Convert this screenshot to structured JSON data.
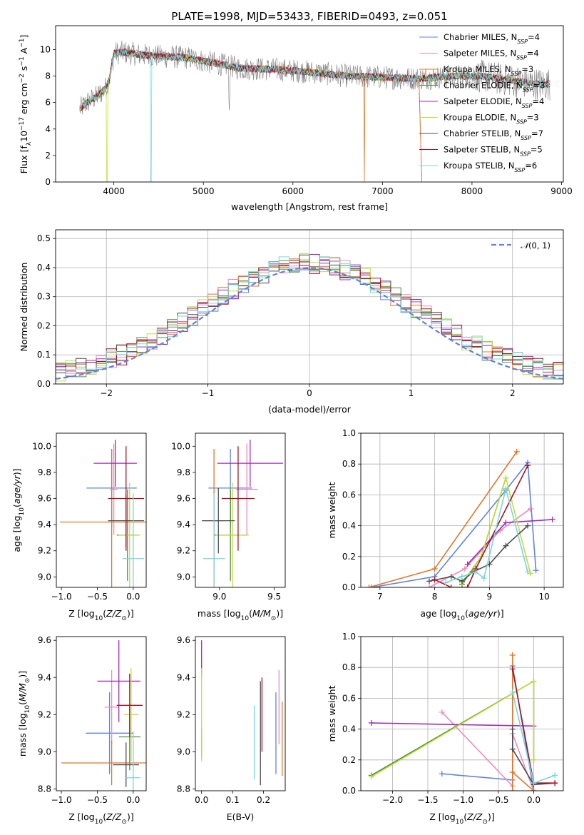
{
  "title": "PLATE=1998, MJD=53433, FIBERID=0493, z=0.051",
  "colors": {
    "chabrier_miles": "#5f84da",
    "salpeter_miles": "#e98bc3",
    "kroupa_miles": "#e37527",
    "chabrier_elodie": "#4b8f3a",
    "salpeter_elodie": "#a12cb7",
    "kroupa_elodie": "#c3dd3d",
    "chabrier_stelib": "#4d4d4d",
    "salpeter_stelib": "#a51222",
    "kroupa_stelib": "#78d6dc",
    "data": "#7f7f7f",
    "normal": "#5f84da",
    "grid": "#b0b0b0"
  },
  "chart_data": [
    {
      "type": "line",
      "xlabel": "wavelength [Angstrom, rest frame]",
      "ylabel": "Flux [f_λ 10^-17 erg cm^-2 s^-1 A^-1]",
      "xlim": [
        3350,
        9020
      ],
      "ylim": [
        0,
        11.8
      ],
      "xticks": [
        4000,
        5000,
        6000,
        7000,
        8000,
        9000
      ],
      "yticks": [
        0,
        2,
        4,
        6,
        8,
        10
      ],
      "grid": false,
      "legend": "top-right",
      "legend_entries": [
        {
          "base": "Chabrier MILES, N",
          "sub": "SSP",
          "tail": "=4"
        },
        {
          "base": "Salpeter MILES, N",
          "sub": "SSP",
          "tail": "=4"
        },
        {
          "base": "Kroupa MILES, N",
          "sub": "SSP",
          "tail": "=3"
        },
        {
          "base": "Chabrier ELODIE, N",
          "sub": "SSP",
          "tail": "=3"
        },
        {
          "base": "Salpeter ELODIE, N",
          "sub": "SSP",
          "tail": "=4"
        },
        {
          "base": "Kroupa ELODIE, N",
          "sub": "SSP",
          "tail": "=3"
        },
        {
          "base": "Chabrier STELIB, N",
          "sub": "SSP",
          "tail": "=7"
        },
        {
          "base": "Salpeter STELIB, N",
          "sub": "SSP",
          "tail": "=5"
        },
        {
          "base": "Kroupa STELIB, N",
          "sub": "SSP",
          "tail": "=6"
        }
      ],
      "continuum": {
        "x": [
          3620,
          3700,
          3800,
          3900,
          3950,
          4000,
          4100,
          4300,
          4500,
          4800,
          5100,
          5400,
          5800,
          6200,
          6600,
          7000,
          7400,
          7800,
          8100,
          8400,
          8700
        ],
        "y": [
          5.5,
          6.0,
          6.4,
          7.0,
          7.7,
          9.7,
          9.8,
          9.6,
          9.5,
          9.4,
          9.0,
          8.6,
          8.5,
          8.3,
          8.0,
          7.9,
          7.8,
          8.0,
          8.0,
          7.7,
          7.4
        ]
      },
      "notes": "model lines roughly follow the continuum; MILES models end near 7400 A"
    },
    {
      "type": "histogram",
      "xlabel": "(data-model)/error",
      "ylabel": "Normed distribution",
      "xlim": [
        -2.5,
        2.5
      ],
      "ylim": [
        0,
        0.53
      ],
      "xticks": [
        -2,
        -1,
        0,
        1,
        2
      ],
      "yticks": [
        0.0,
        0.1,
        0.2,
        0.3,
        0.4,
        0.5
      ],
      "grid": true,
      "legend": "top-right",
      "legend_label": "N(0,1)",
      "bin_width": 0.1,
      "reference_curve": "normal(0,1)"
    },
    {
      "type": "scatter",
      "panel": "age-vs-Z",
      "xlabel": "Z [log10(Z/Z_sun)]",
      "ylabel": "age [log10(age/yr)]",
      "xlim": [
        -1.07,
        0.18
      ],
      "ylim": [
        8.92,
        10.1
      ],
      "xticks": [
        -1.0,
        -0.5,
        0.0
      ],
      "yticks": [
        9.0,
        9.2,
        9.4,
        9.6,
        9.8,
        10.0
      ],
      "points": [
        {
          "m": "chabrier_miles",
          "x": -0.3,
          "y": 9.68,
          "xerr": 0.35,
          "yerr": 0.3
        },
        {
          "m": "salpeter_miles",
          "x": -0.27,
          "y": 9.67,
          "xerr": 0.05,
          "yerr": 0.35
        },
        {
          "m": "kroupa_miles",
          "x": -0.3,
          "y": 9.42,
          "xerr": 0.72,
          "yerr": 0.55
        },
        {
          "m": "chabrier_elodie",
          "x": -0.08,
          "y": 9.32,
          "xerr": 0.15,
          "yerr": 0.35
        },
        {
          "m": "salpeter_elodie",
          "x": -0.25,
          "y": 9.87,
          "xerr": 0.3,
          "yerr": 0.18
        },
        {
          "m": "kroupa_elodie",
          "x": -0.05,
          "y": 9.32,
          "xerr": 0.15,
          "yerr": 0.4
        },
        {
          "m": "chabrier_stelib",
          "x": -0.1,
          "y": 9.43,
          "xerr": 0.25,
          "yerr": 0.2
        },
        {
          "m": "salpeter_stelib",
          "x": -0.1,
          "y": 9.6,
          "xerr": 0.25,
          "yerr": 0.4
        },
        {
          "m": "kroupa_stelib",
          "x": 0.0,
          "y": 9.14,
          "xerr": 0.15,
          "yerr": 0.5
        }
      ]
    },
    {
      "type": "scatter",
      "panel": "age-vs-mass",
      "xlabel": "mass [log10(M/M_sun)]",
      "ylabel": "",
      "xlim": [
        8.78,
        9.6
      ],
      "ylim": [
        8.92,
        10.1
      ],
      "xticks": [
        9.0,
        9.5
      ],
      "yticks": [
        9.0,
        9.2,
        9.4,
        9.6,
        9.8,
        10.0
      ],
      "points": [
        {
          "m": "chabrier_miles",
          "x": 9.1,
          "y": 9.68,
          "xerr": 0.2,
          "yerr": 0.3
        },
        {
          "m": "salpeter_miles",
          "x": 9.25,
          "y": 9.67,
          "xerr": 0.1,
          "yerr": 0.35
        },
        {
          "m": "kroupa_miles",
          "x": 8.95,
          "y": 9.43,
          "xerr": 0.1,
          "yerr": 0.55
        },
        {
          "m": "chabrier_elodie",
          "x": 9.1,
          "y": 9.32,
          "xerr": 0.15,
          "yerr": 0.35
        },
        {
          "m": "salpeter_elodie",
          "x": 9.28,
          "y": 9.87,
          "xerr": 0.3,
          "yerr": 0.18
        },
        {
          "m": "kroupa_elodie",
          "x": 9.12,
          "y": 9.32,
          "xerr": 0.15,
          "yerr": 0.4
        },
        {
          "m": "chabrier_stelib",
          "x": 8.99,
          "y": 9.43,
          "xerr": 0.15,
          "yerr": 0.25
        },
        {
          "m": "salpeter_stelib",
          "x": 9.17,
          "y": 9.6,
          "xerr": 0.15,
          "yerr": 0.4
        },
        {
          "m": "kroupa_stelib",
          "x": 8.95,
          "y": 9.14,
          "xerr": 0.1,
          "yerr": 0.5
        }
      ]
    },
    {
      "type": "line",
      "panel": "weight-vs-age",
      "xlabel": "age [log10(age/yr)]",
      "ylabel": "mass weight",
      "xlim": [
        6.65,
        10.35
      ],
      "ylim": [
        0,
        1.0
      ],
      "xticks": [
        7,
        8,
        9,
        10
      ],
      "yticks": [
        0.0,
        0.2,
        0.4,
        0.6,
        0.8,
        1.0
      ],
      "grid": true,
      "series": [
        {
          "m": "chabrier_miles",
          "x": [
            6.85,
            8.0,
            9.3,
            9.7,
            9.85
          ],
          "y": [
            0.0,
            0.07,
            0.63,
            0.81,
            0.11
          ]
        },
        {
          "m": "salpeter_miles",
          "x": [
            7.9,
            8.55,
            9.2,
            9.75
          ],
          "y": [
            0.0,
            0.12,
            0.37,
            0.51
          ]
        },
        {
          "m": "kroupa_miles",
          "x": [
            6.8,
            8.0,
            9.5
          ],
          "y": [
            0.0,
            0.12,
            0.88
          ]
        },
        {
          "m": "chabrier_elodie",
          "x": [
            8.5,
            8.85,
            9.3
          ],
          "y": [
            0.02,
            0.2,
            0.71
          ]
        },
        {
          "m": "salpeter_elodie",
          "x": [
            8.6,
            9.3,
            10.15
          ],
          "y": [
            0.15,
            0.42,
            0.44
          ]
        },
        {
          "m": "kroupa_elodie",
          "x": [
            8.5,
            8.85,
            9.3,
            9.75
          ],
          "y": [
            0.03,
            0.2,
            0.71,
            0.09
          ]
        },
        {
          "m": "chabrier_stelib",
          "x": [
            7.9,
            8.3,
            8.5,
            8.7,
            9.0,
            9.3,
            9.7
          ],
          "y": [
            0.04,
            0.07,
            0.04,
            0.1,
            0.15,
            0.27,
            0.4
          ]
        },
        {
          "m": "salpeter_stelib",
          "x": [
            8.0,
            8.3,
            8.6,
            8.75,
            9.7
          ],
          "y": [
            0.05,
            0.0,
            0.0,
            0.12,
            0.79
          ]
        },
        {
          "m": "kroupa_stelib",
          "x": [
            8.2,
            8.5,
            8.75,
            8.9,
            9.3,
            9.7
          ],
          "y": [
            0.03,
            0.07,
            0.1,
            0.06,
            0.64,
            0.1
          ]
        }
      ]
    },
    {
      "type": "scatter",
      "panel": "mass-vs-Z",
      "xlabel": "Z [log10(Z/Z_sun)]",
      "ylabel": "mass [log10(M/M_sun)]",
      "xlim": [
        -1.07,
        0.18
      ],
      "ylim": [
        8.79,
        9.62
      ],
      "xticks": [
        -1.0,
        -0.5,
        0.0
      ],
      "yticks": [
        8.8,
        9.0,
        9.2,
        9.4,
        9.6
      ],
      "points": [
        {
          "m": "chabrier_miles",
          "x": -0.33,
          "y": 9.1,
          "xerr": 0.33,
          "yerr": 0.22
        },
        {
          "m": "salpeter_miles",
          "x": -0.3,
          "y": 9.24,
          "xerr": 0.1,
          "yerr": 0.2
        },
        {
          "m": "kroupa_miles",
          "x": -0.3,
          "y": 8.94,
          "xerr": 0.7,
          "yerr": 0.12
        },
        {
          "m": "chabrier_elodie",
          "x": -0.05,
          "y": 9.08,
          "xerr": 0.15,
          "yerr": 0.18
        },
        {
          "m": "salpeter_elodie",
          "x": -0.2,
          "y": 9.38,
          "xerr": 0.3,
          "yerr": 0.22
        },
        {
          "m": "kroupa_elodie",
          "x": -0.03,
          "y": 9.2,
          "xerr": 0.1,
          "yerr": 0.25
        },
        {
          "m": "chabrier_stelib",
          "x": -0.1,
          "y": 8.93,
          "xerr": 0.18,
          "yerr": 0.12
        },
        {
          "m": "salpeter_stelib",
          "x": -0.05,
          "y": 9.25,
          "xerr": 0.18,
          "yerr": 0.17
        },
        {
          "m": "kroupa_stelib",
          "x": 0.0,
          "y": 8.86,
          "xerr": 0.1,
          "yerr": 0.25
        }
      ]
    },
    {
      "type": "scatter",
      "panel": "mass-vs-EBV",
      "xlabel": "E(B-V)",
      "ylabel": "",
      "xlim": [
        -0.02,
        0.27
      ],
      "ylim": [
        8.79,
        9.62
      ],
      "xticks": [
        0.0,
        0.1,
        0.2
      ],
      "yticks": [
        8.8,
        9.0,
        9.2,
        9.4,
        9.6
      ],
      "points": [
        {
          "m": "chabrier_miles",
          "x": 0.24,
          "y": 9.1,
          "yerr": 0.22
        },
        {
          "m": "salpeter_miles",
          "x": 0.25,
          "y": 9.24,
          "yerr": 0.2
        },
        {
          "m": "kroupa_miles",
          "x": 0.26,
          "y": 9.07,
          "yerr": 0.2
        },
        {
          "m": "chabrier_elodie",
          "x": 0.0,
          "y": 9.05,
          "yerr": 0.08
        },
        {
          "m": "salpeter_elodie",
          "x": 0.0,
          "y": 9.5,
          "yerr": 0.1
        },
        {
          "m": "kroupa_elodie",
          "x": 0.0,
          "y": 9.2,
          "yerr": 0.25
        },
        {
          "m": "chabrier_stelib",
          "x": 0.19,
          "y": 9.1,
          "yerr": 0.28
        },
        {
          "m": "salpeter_stelib",
          "x": 0.195,
          "y": 9.2,
          "yerr": 0.2
        },
        {
          "m": "kroupa_stelib",
          "x": 0.17,
          "y": 9.05,
          "yerr": 0.2
        }
      ]
    },
    {
      "type": "line",
      "panel": "weight-vs-Z",
      "xlabel": "Z [log10(Z/Z_sun)]",
      "ylabel": "mass weight",
      "xlim": [
        -2.45,
        0.42
      ],
      "ylim": [
        0,
        1.0
      ],
      "xticks": [
        -2.0,
        -1.5,
        -1.0,
        -0.5,
        0.0
      ],
      "yticks": [
        0.0,
        0.2,
        0.4,
        0.6,
        0.8,
        1.0
      ],
      "grid": true,
      "series": [
        {
          "m": "chabrier_miles",
          "x": [
            -1.3,
            -0.3,
            -0.3,
            0.0
          ],
          "y": [
            0.11,
            0.07,
            0.81,
            0.0
          ]
        },
        {
          "m": "salpeter_miles",
          "x": [
            -1.3,
            -0.3,
            -0.3,
            0.0
          ],
          "y": [
            0.51,
            0.03,
            0.37,
            0.0
          ]
        },
        {
          "m": "kroupa_miles",
          "x": [
            -0.3,
            -0.3,
            -0.3,
            0.0
          ],
          "y": [
            0.0,
            0.88,
            0.12,
            0.0
          ]
        },
        {
          "m": "chabrier_elodie",
          "x": [
            -2.3,
            0.0,
            0.0
          ],
          "y": [
            0.1,
            0.71,
            0.2
          ]
        },
        {
          "m": "salpeter_elodie",
          "x": [
            -2.3,
            0.0
          ],
          "y": [
            0.44,
            0.42
          ]
        },
        {
          "m": "kroupa_elodie",
          "x": [
            -2.3,
            0.0,
            0.0
          ],
          "y": [
            0.09,
            0.71,
            0.2
          ]
        },
        {
          "m": "chabrier_stelib",
          "x": [
            -0.3,
            -0.3,
            0.0,
            0.3
          ],
          "y": [
            0.4,
            0.27,
            0.04,
            0.05
          ]
        },
        {
          "m": "salpeter_stelib",
          "x": [
            -0.3,
            0.0,
            0.3
          ],
          "y": [
            0.79,
            0.05,
            0.05
          ]
        },
        {
          "m": "kroupa_stelib",
          "x": [
            -0.3,
            0.0,
            0.3
          ],
          "y": [
            0.64,
            0.05,
            0.1
          ]
        }
      ]
    }
  ]
}
